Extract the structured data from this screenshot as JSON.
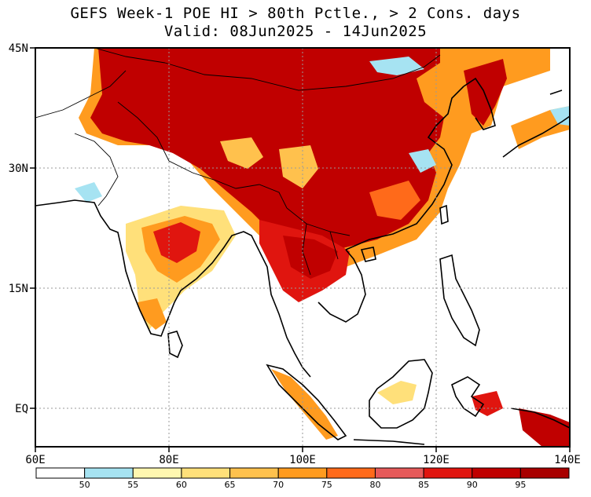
{
  "title": {
    "line1": "GEFS Week-1 POE HI > 80th Pctle., > 2 Cons. days",
    "line2": "Valid: 08Jun2025 - 14Jun2025"
  },
  "axes": {
    "lat_labels": [
      "45N",
      "30N",
      "15N",
      "EQ"
    ],
    "lon_labels": [
      "60E",
      "80E",
      "100E",
      "120E",
      "140E"
    ]
  },
  "colorbar": {
    "colors": [
      "#ffffff",
      "#a6e3f2",
      "#fff7b0",
      "#ffe07a",
      "#ffc14d",
      "#ff9b1f",
      "#ff6a1a",
      "#e65a5a",
      "#e0150f",
      "#c00000",
      "#a80000"
    ],
    "labels": [
      "50",
      "55",
      "60",
      "65",
      "70",
      "75",
      "80",
      "85",
      "90",
      "95"
    ]
  },
  "colors": {
    "land_default": "#ffffff",
    "heat_core": "#c00000",
    "heat_mid": "#e0150f",
    "heat_edge": "#ff9b1f",
    "heat_fringe": "#ffe07a",
    "cool": "#a6e3f2",
    "grid": "#9a9a9a"
  }
}
